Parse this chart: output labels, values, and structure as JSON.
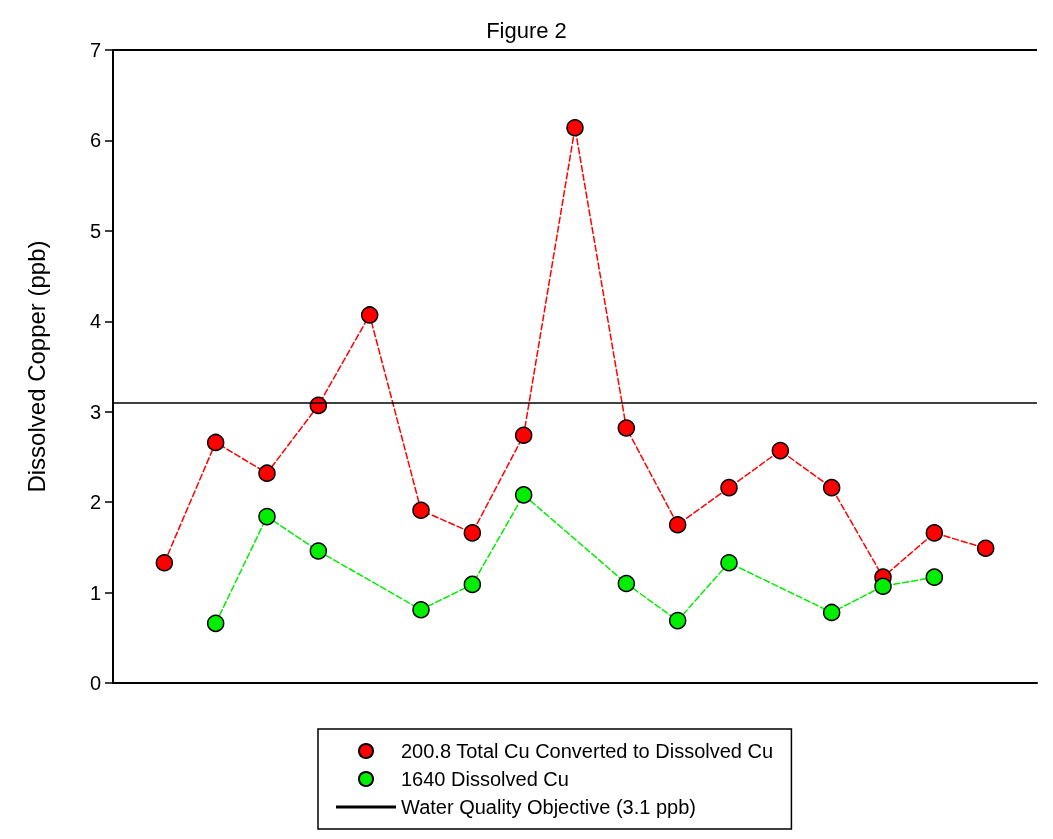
{
  "chart_data": {
    "type": "line",
    "title": "Figure 2",
    "ylabel": "Dissolved Copper (ppb)",
    "categories": [
      null,
      null,
      null,
      null,
      null,
      null,
      null,
      null,
      null,
      null,
      null,
      null,
      null,
      null,
      null,
      null,
      null
    ],
    "series": [
      {
        "name": "200.8 Total Cu Converted to Dissolved Cu",
        "color": "#ff0000",
        "values": [
          1.33,
          2.66,
          2.32,
          3.07,
          4.07,
          1.91,
          1.66,
          2.74,
          6.14,
          2.82,
          1.75,
          2.16,
          2.57,
          2.16,
          1.17,
          1.66,
          1.49
        ]
      },
      {
        "name": "1640 Dissolved Cu",
        "color": "#00ee00",
        "values": [
          null,
          0.66,
          1.84,
          1.46,
          null,
          0.81,
          1.09,
          2.08,
          null,
          1.1,
          0.69,
          1.33,
          null,
          0.78,
          1.07,
          1.17,
          null
        ]
      }
    ],
    "ref_lines": [
      {
        "axis": "y",
        "value": 3.1,
        "label": "Water Quality Objective (3.1 ppb)",
        "color": "#000000",
        "line_style": "solid"
      }
    ],
    "ylim": [
      0,
      7
    ],
    "yticks": [
      0,
      1,
      2,
      3,
      4,
      5,
      6,
      7
    ],
    "grid": false,
    "legend": "bottom",
    "marker": "circle",
    "line_style": "dashed",
    "tick_labels": "y"
  }
}
